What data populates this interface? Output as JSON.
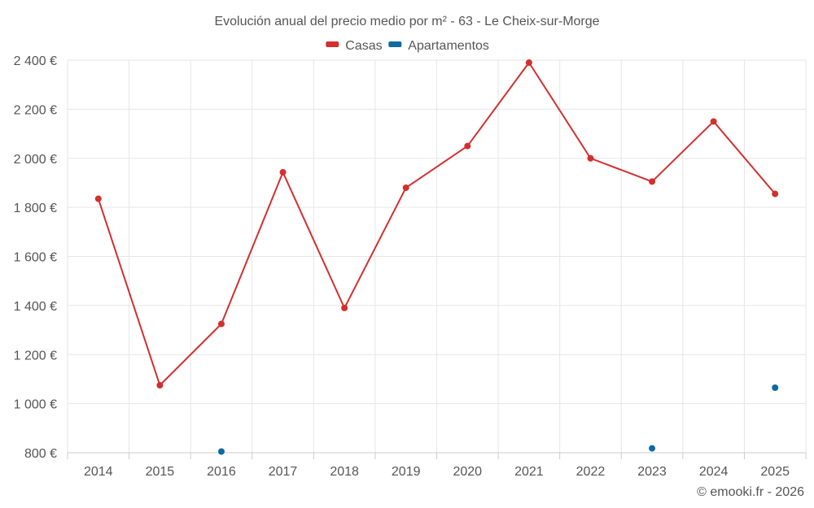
{
  "chart_data": {
    "type": "line",
    "title": "Evolución anual del precio medio por m² - 63 - Le Cheix-sur-Morge",
    "categories": [
      "2014",
      "2015",
      "2016",
      "2017",
      "2018",
      "2019",
      "2020",
      "2021",
      "2022",
      "2023",
      "2024",
      "2025"
    ],
    "series": [
      {
        "name": "Casas",
        "color": "#d32f2f",
        "values": [
          1835,
          1075,
          1325,
          1943,
          1390,
          1880,
          2050,
          2390,
          2000,
          1905,
          2150,
          1855
        ]
      },
      {
        "name": "Apartamentos",
        "color": "#0e6aa0",
        "values": [
          null,
          null,
          805,
          null,
          null,
          null,
          null,
          null,
          null,
          818,
          null,
          1065
        ]
      }
    ],
    "ylim": [
      800,
      2400
    ],
    "yticks": [
      800,
      1000,
      1200,
      1400,
      1600,
      1800,
      2000,
      2200,
      2400
    ],
    "ytick_labels": [
      "800 €",
      "1 000 €",
      "1 200 €",
      "1 400 €",
      "1 600 €",
      "1 800 €",
      "2 000 €",
      "2 200 €",
      "2 400 €"
    ],
    "xlabel": "",
    "ylabel": "",
    "grid": true,
    "legend_position": "top-center",
    "credit": "© emooki.fr - 2026"
  }
}
